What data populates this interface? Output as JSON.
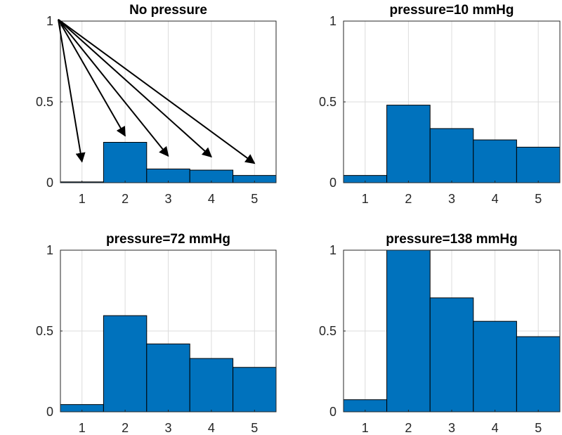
{
  "chart_data": [
    {
      "type": "bar",
      "title": "No pressure",
      "categories": [
        1,
        2,
        3,
        4,
        5
      ],
      "values": [
        0.005,
        0.25,
        0.085,
        0.078,
        0.045
      ],
      "ylim": [
        0,
        1
      ],
      "yticks": [
        0,
        0.5,
        1
      ],
      "ytick_labels": [
        "0",
        "0.5",
        "1"
      ],
      "xtick_labels": [
        "1",
        "2",
        "3",
        "4",
        "5"
      ],
      "grid": true,
      "bar_color": "#0072BD",
      "annotations": [
        {
          "type": "arrow",
          "from": [
            0.45,
            1.01
          ],
          "to": [
            1.0,
            0.13
          ]
        },
        {
          "type": "arrow",
          "from": [
            0.45,
            1.01
          ],
          "to": [
            2.0,
            0.29
          ]
        },
        {
          "type": "arrow",
          "from": [
            0.45,
            1.01
          ],
          "to": [
            3.0,
            0.165
          ]
        },
        {
          "type": "arrow",
          "from": [
            0.45,
            1.01
          ],
          "to": [
            4.0,
            0.16
          ]
        },
        {
          "type": "arrow",
          "from": [
            0.45,
            1.01
          ],
          "to": [
            5.0,
            0.12
          ]
        }
      ]
    },
    {
      "type": "bar",
      "title": "pressure=10 mmHg",
      "categories": [
        1,
        2,
        3,
        4,
        5
      ],
      "values": [
        0.045,
        0.48,
        0.335,
        0.265,
        0.22
      ],
      "ylim": [
        0,
        1
      ],
      "yticks": [
        0,
        0.5,
        1
      ],
      "ytick_labels": [
        "0",
        "0.5",
        "1"
      ],
      "xtick_labels": [
        "1",
        "2",
        "3",
        "4",
        "5"
      ],
      "grid": true,
      "bar_color": "#0072BD"
    },
    {
      "type": "bar",
      "title": "pressure=72 mmHg",
      "categories": [
        1,
        2,
        3,
        4,
        5
      ],
      "values": [
        0.045,
        0.595,
        0.42,
        0.33,
        0.275
      ],
      "ylim": [
        0,
        1
      ],
      "yticks": [
        0,
        0.5,
        1
      ],
      "ytick_labels": [
        "0",
        "0.5",
        "1"
      ],
      "xtick_labels": [
        "1",
        "2",
        "3",
        "4",
        "5"
      ],
      "grid": true,
      "bar_color": "#0072BD"
    },
    {
      "type": "bar",
      "title": "pressure=138 mmHg",
      "categories": [
        1,
        2,
        3,
        4,
        5
      ],
      "values": [
        0.075,
        1.0,
        0.705,
        0.56,
        0.465
      ],
      "ylim": [
        0,
        1
      ],
      "yticks": [
        0,
        0.5,
        1
      ],
      "ytick_labels": [
        "0",
        "0.5",
        "1"
      ],
      "xtick_labels": [
        "1",
        "2",
        "3",
        "4",
        "5"
      ],
      "grid": true,
      "bar_color": "#0072BD"
    }
  ]
}
